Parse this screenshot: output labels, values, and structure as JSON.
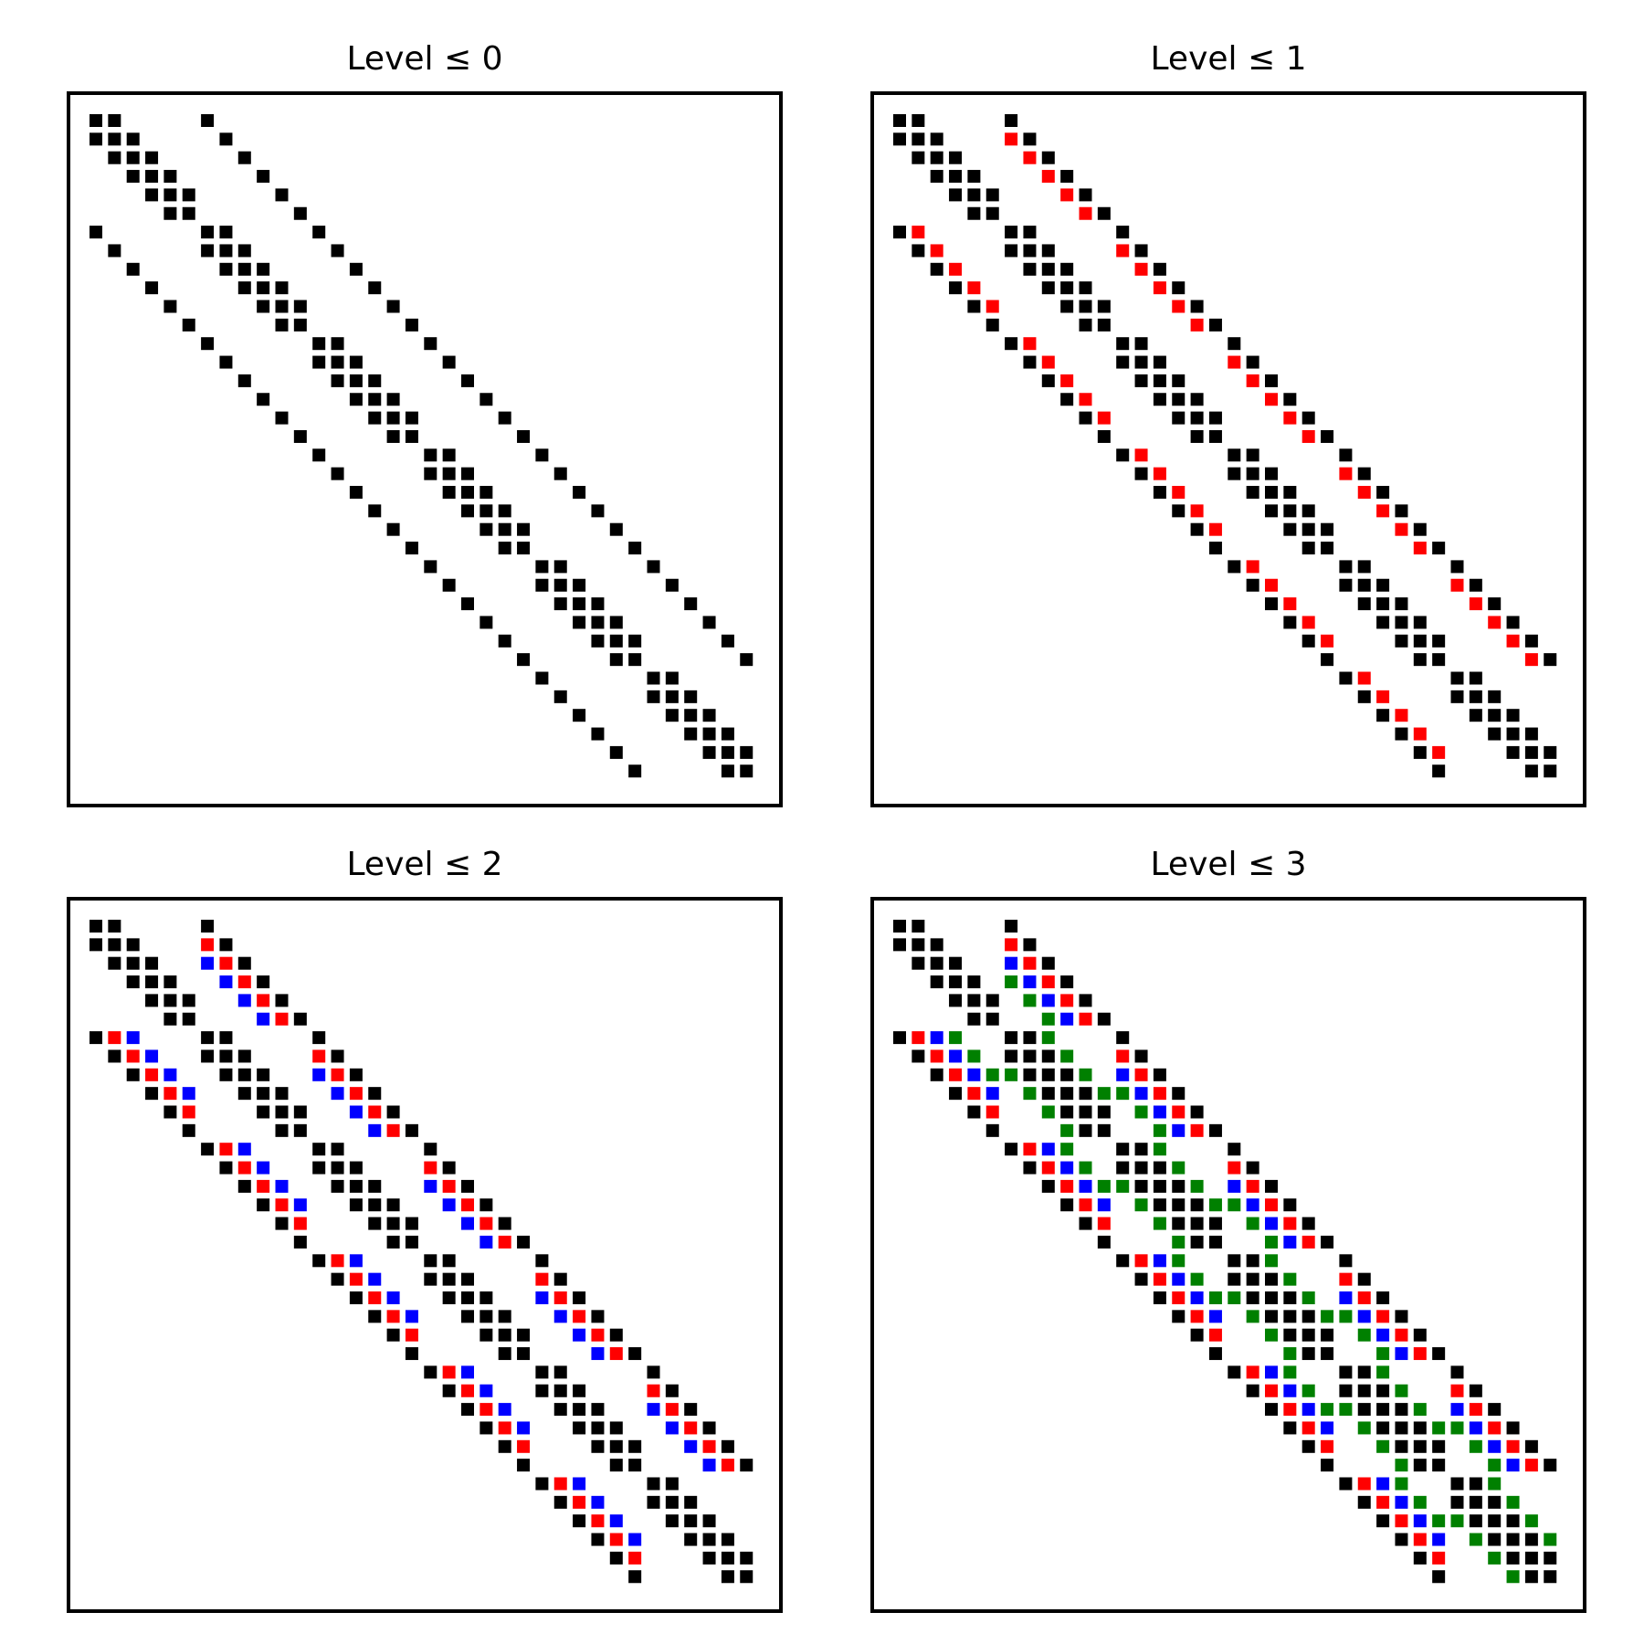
{
  "chart_data": {
    "type": "spy",
    "description_rows": "sparsity patterns of a 36x36 matrix (6x6 grid, 5-point stencil) and incomplete LU fill-in by level",
    "grid_n": 6,
    "matrix_size": 36,
    "colors": {
      "0": "#000000",
      "1": "#ff0000",
      "2": "#0000ff",
      "3": "#008000"
    },
    "panels": [
      {
        "title": "Level ≤ 0",
        "max_level": 0
      },
      {
        "title": "Level ≤ 1",
        "max_level": 1
      },
      {
        "title": "Level ≤ 2",
        "max_level": 2
      },
      {
        "title": "Level ≤ 3",
        "max_level": 3
      }
    ]
  }
}
